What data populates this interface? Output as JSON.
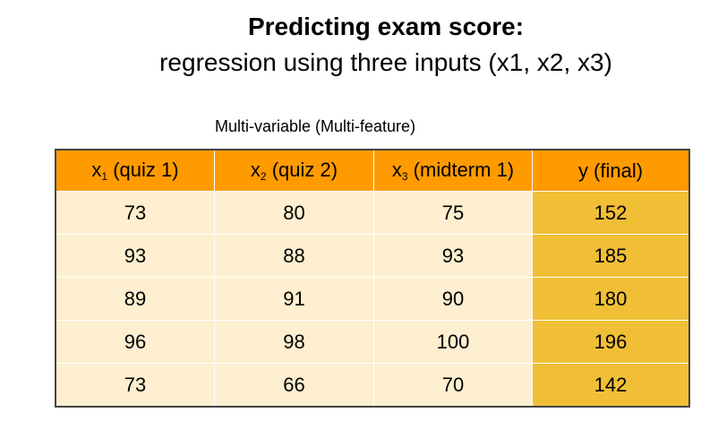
{
  "title": "Predicting exam score:",
  "subtitle": "regression using three inputs (x1, x2, x3)",
  "caption": "Multi-variable (Multi-feature)",
  "table": {
    "headers": [
      {
        "var": "x",
        "sub": "1",
        "rest": " (quiz 1)"
      },
      {
        "var": "x",
        "sub": "2",
        "rest": " (quiz 2)"
      },
      {
        "var": "x",
        "sub": "3",
        "rest": " (midterm 1)"
      },
      {
        "var": "y",
        "sub": "",
        "rest": " (final)"
      }
    ],
    "rows": [
      [
        "73",
        "80",
        "75",
        "152"
      ],
      [
        "93",
        "88",
        "93",
        "185"
      ],
      [
        "89",
        "91",
        "90",
        "180"
      ],
      [
        "96",
        "98",
        "100",
        "196"
      ],
      [
        "73",
        "66",
        "70",
        "142"
      ]
    ]
  },
  "colors": {
    "header_bg": "#ff9a00",
    "cell_bg": "#fdefcf",
    "target_col_bg": "#f0bf36"
  }
}
